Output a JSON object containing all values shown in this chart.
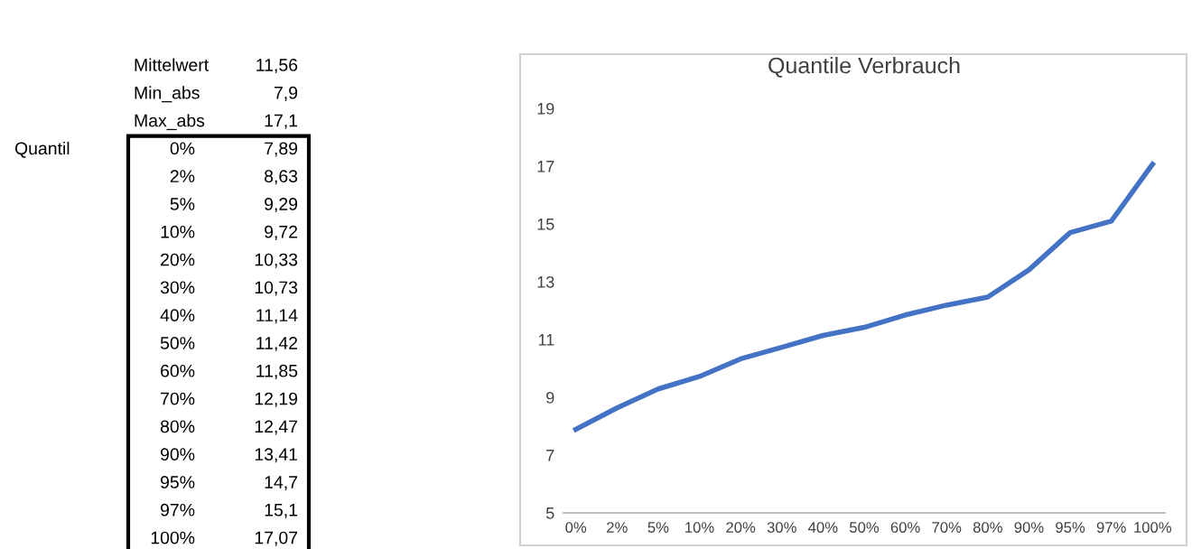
{
  "chart_data": {
    "type": "line",
    "title": "Quantile Verbrauch",
    "categories": [
      "0%",
      "2%",
      "5%",
      "10%",
      "20%",
      "30%",
      "40%",
      "50%",
      "60%",
      "70%",
      "80%",
      "90%",
      "95%",
      "97%",
      "100%"
    ],
    "series": [
      {
        "color": "#4472c4",
        "values": [
          7.89,
          8.63,
          9.29,
          9.72,
          10.33,
          10.73,
          11.14,
          11.42,
          11.85,
          12.19,
          12.47,
          13.41,
          14.7,
          15.1,
          17.07
        ]
      }
    ],
    "ylim": [
      5,
      19
    ],
    "yticks": [
      5,
      7,
      9,
      11,
      13,
      15,
      17,
      19
    ],
    "grid": false,
    "legend": false,
    "marker": "none",
    "line_style": "solid",
    "annotations": [
      "Mittelwert",
      "11,56",
      "Min_abs",
      "7,9",
      "Max_abs",
      "17,1",
      "Quantil",
      "7,89",
      "8,63",
      "9,29",
      "9,72",
      "10,33",
      "10,73",
      "11,14",
      "11,42",
      "11,85",
      "12,19",
      "12,47",
      "13,41",
      "14,7",
      "15,1",
      "17,07"
    ]
  }
}
